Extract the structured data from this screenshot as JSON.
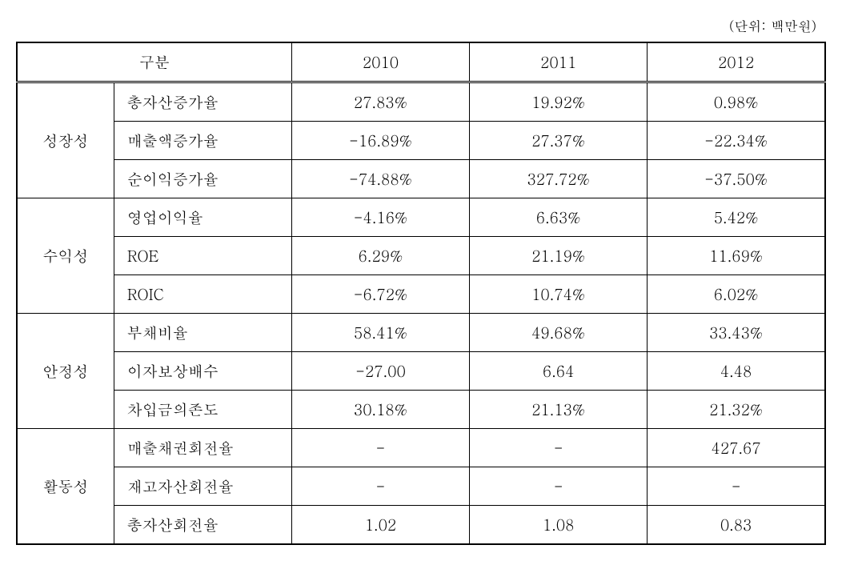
{
  "unit_label": "(단위: 백만원)",
  "header": {
    "category_label": "구분",
    "years": [
      "2010",
      "2011",
      "2012"
    ]
  },
  "groups": [
    {
      "name": "성장성",
      "rows": [
        {
          "metric": "총자산증가율",
          "values": [
            "27.83%",
            "19.92%",
            "0.98%"
          ]
        },
        {
          "metric": "매출액증가율",
          "values": [
            "-16.89%",
            "27.37%",
            "-22.34%"
          ]
        },
        {
          "metric": "순이익증가율",
          "values": [
            "-74.88%",
            "327.72%",
            "-37.50%"
          ]
        }
      ]
    },
    {
      "name": "수익성",
      "rows": [
        {
          "metric": "영업이익율",
          "values": [
            "-4.16%",
            "6.63%",
            "5.42%"
          ]
        },
        {
          "metric": "ROE",
          "values": [
            "6.29%",
            "21.19%",
            "11.69%"
          ]
        },
        {
          "metric": "ROIC",
          "values": [
            "-6.72%",
            "10.74%",
            "6.02%"
          ]
        }
      ]
    },
    {
      "name": "안정성",
      "rows": [
        {
          "metric": "부채비율",
          "values": [
            "58.41%",
            "49.68%",
            "33.43%"
          ]
        },
        {
          "metric": "이자보상배수",
          "values": [
            "-27.00",
            "6.64",
            "4.48"
          ]
        },
        {
          "metric": "차입금의존도",
          "values": [
            "30.18%",
            "21.13%",
            "21.32%"
          ]
        }
      ]
    },
    {
      "name": "활동성",
      "rows": [
        {
          "metric": "매출채권회전율",
          "values": [
            "-",
            "-",
            "427.67"
          ]
        },
        {
          "metric": "재고자산회전율",
          "values": [
            "-",
            "-",
            "-"
          ]
        },
        {
          "metric": "총자산회전율",
          "values": [
            "1.02",
            "1.08",
            "0.83"
          ]
        }
      ]
    }
  ],
  "styling": {
    "background_color": "#ffffff",
    "text_color": "#000000",
    "border_color": "#000000",
    "outer_border_width": 2,
    "inner_border_width": 1,
    "font_size_body": 19,
    "font_size_unit": 17,
    "table_type": "table",
    "column_widths": {
      "category": 120,
      "metric": 220,
      "year": 220
    }
  }
}
